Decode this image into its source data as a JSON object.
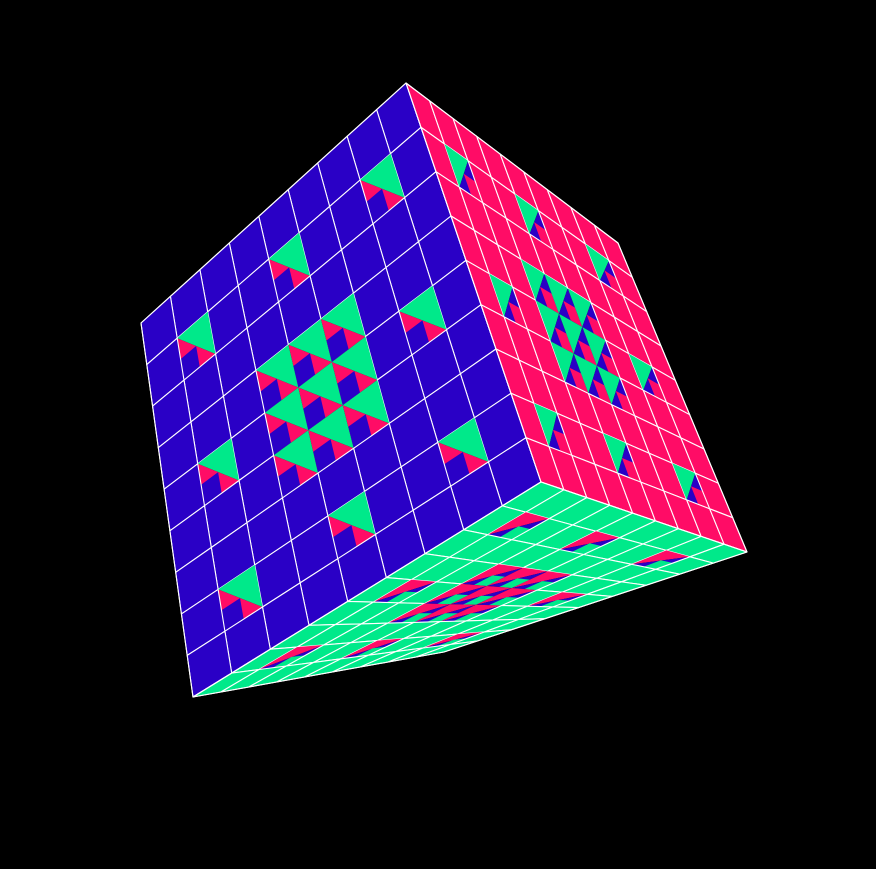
{
  "scene": {
    "subject": "menger-sponge-cube",
    "background_color": "#000000",
    "grid_color": "#ffffff",
    "subdivisions": 9,
    "faces": [
      {
        "name": "front-face",
        "color": "#2a00c6",
        "hole_inner_a": "#ff0c66",
        "hole_inner_b": "#00e98a"
      },
      {
        "name": "right-face",
        "color": "#ff0c66",
        "hole_inner_a": "#2a00c6",
        "hole_inner_b": "#00e98a"
      },
      {
        "name": "bottom-face",
        "color": "#00e98a",
        "hole_inner_a": "#2a00c6",
        "hole_inner_b": "#ff0c66"
      }
    ]
  }
}
